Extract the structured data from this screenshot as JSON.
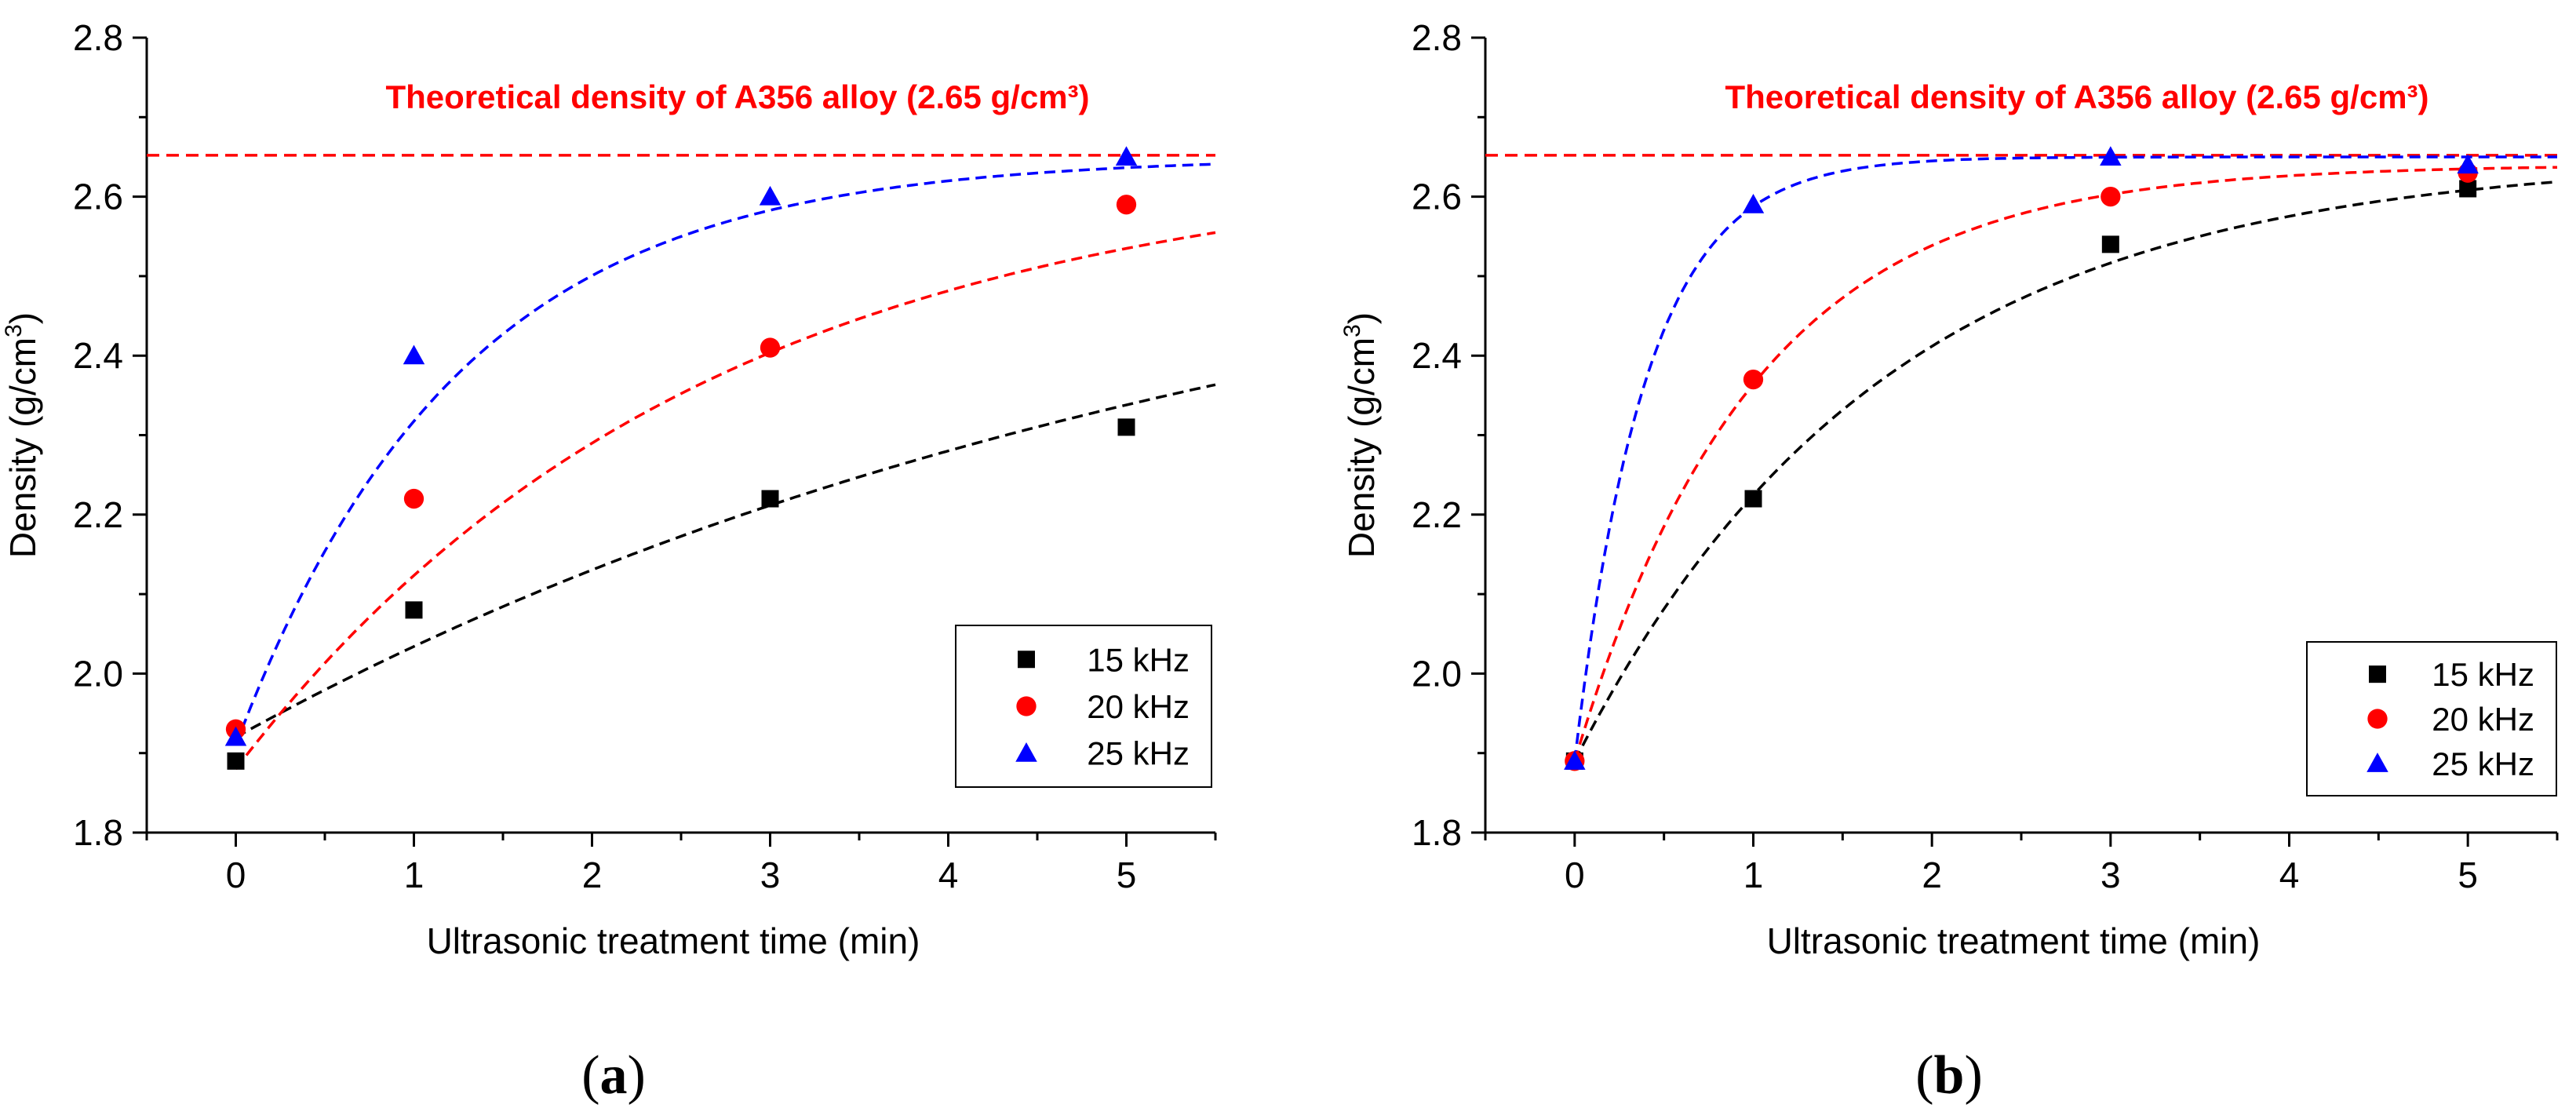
{
  "chart_data": [
    {
      "type": "scatter",
      "panel_label": "(a)",
      "panel_letter": "a",
      "xlabel": "Ultrasonic treatment time (min)",
      "ylabel_main": "Density (g/cm",
      "ylabel_sup": "3",
      "ylabel_end": ")",
      "xlim": [
        -0.5,
        5.5
      ],
      "ylim": [
        1.8,
        2.8
      ],
      "xticks": [
        0,
        1,
        2,
        3,
        4,
        5
      ],
      "xtick_labels": [
        "0",
        "1",
        "2",
        "3",
        "4",
        "5"
      ],
      "yticks": [
        1.8,
        2.0,
        2.2,
        2.4,
        2.6,
        2.8
      ],
      "ytick_labels": [
        "1.8",
        "2.0",
        "2.2",
        "2.4",
        "2.6",
        "2.8"
      ],
      "reference_line": {
        "y": 2.652,
        "label": "Theoretical density of A356 alloy (2.65 g/cm³)",
        "color": "#ff0000"
      },
      "legend_position": "lower-right",
      "series": [
        {
          "name": "15 kHz",
          "marker": "square",
          "color": "#000000",
          "x": [
            0,
            1,
            3,
            5
          ],
          "y": [
            1.89,
            2.08,
            2.22,
            2.31
          ],
          "fit": {
            "y0": 1.92,
            "a": 0.73,
            "k": 0.17
          }
        },
        {
          "name": "20 kHz",
          "marker": "circle",
          "color": "#ff0000",
          "x": [
            0,
            1,
            3,
            5
          ],
          "y": [
            1.93,
            2.22,
            2.41,
            2.59
          ],
          "fit": {
            "y0": 1.88,
            "a": 0.77,
            "k": 0.38
          }
        },
        {
          "name": "25 kHz",
          "marker": "triangle",
          "color": "#0000ff",
          "x": [
            0,
            1,
            3,
            5
          ],
          "y": [
            1.92,
            2.4,
            2.6,
            2.65
          ],
          "fit": {
            "y0": 1.91,
            "a": 0.74,
            "k": 0.8
          }
        }
      ]
    },
    {
      "type": "scatter",
      "panel_label": "(b)",
      "panel_letter": "b",
      "xlabel": "Ultrasonic treatment time (min)",
      "ylabel_main": "Density (g/cm",
      "ylabel_sup": "3",
      "ylabel_end": ")",
      "xlim": [
        -0.5,
        5.5
      ],
      "ylim": [
        1.8,
        2.8
      ],
      "xticks": [
        0,
        1,
        2,
        3,
        4,
        5
      ],
      "xtick_labels": [
        "0",
        "1",
        "2",
        "3",
        "4",
        "5"
      ],
      "yticks": [
        1.8,
        2.0,
        2.2,
        2.4,
        2.6,
        2.8
      ],
      "ytick_labels": [
        "1.8",
        "2.0",
        "2.2",
        "2.4",
        "2.6",
        "2.8"
      ],
      "reference_line": {
        "y": 2.652,
        "label": "Theoretical density of A356 alloy (2.65 g/cm³)",
        "color": "#ff0000"
      },
      "legend_position": "lower-right",
      "series": [
        {
          "name": "15 kHz",
          "marker": "square",
          "color": "#000000",
          "x": [
            0,
            1,
            3,
            5
          ],
          "y": [
            1.89,
            2.22,
            2.54,
            2.61
          ],
          "fit": {
            "y0": 1.89,
            "a": 0.76,
            "k": 0.58
          }
        },
        {
          "name": "20 kHz",
          "marker": "circle",
          "color": "#ff0000",
          "x": [
            0,
            1,
            3,
            5
          ],
          "y": [
            1.89,
            2.37,
            2.6,
            2.63
          ],
          "fit": {
            "y0": 1.89,
            "a": 0.75,
            "k": 1.0
          }
        },
        {
          "name": "25 kHz",
          "marker": "triangle",
          "color": "#0000ff",
          "x": [
            0,
            1,
            3,
            5
          ],
          "y": [
            1.89,
            2.59,
            2.65,
            2.64
          ],
          "fit": {
            "y0": 1.89,
            "a": 0.76,
            "k": 2.5
          }
        }
      ]
    }
  ]
}
